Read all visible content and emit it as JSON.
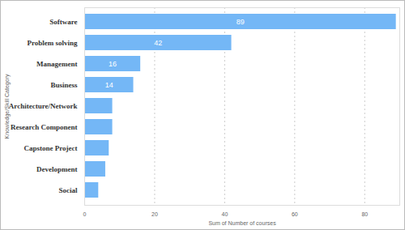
{
  "chart_data": {
    "type": "bar",
    "orientation": "horizontal",
    "categories": [
      "Software",
      "Problem solving",
      "Management",
      "Business",
      "Architecture/Network",
      "Research Component",
      "Capstone Project",
      "Development",
      "Social"
    ],
    "values": [
      89,
      42,
      16,
      14,
      8,
      8,
      7,
      6,
      4
    ],
    "data_labels": true,
    "value_labels": [
      "89",
      "42",
      "16",
      "14",
      null,
      null,
      null,
      null,
      null
    ],
    "color": "#74b7f6",
    "xlabel": "Sum of Number of courses",
    "ylabel": "Knowledge/Skill Category",
    "xlim": [
      0,
      90
    ],
    "xticks": [
      0,
      20,
      40,
      60,
      80
    ],
    "grid": true
  }
}
